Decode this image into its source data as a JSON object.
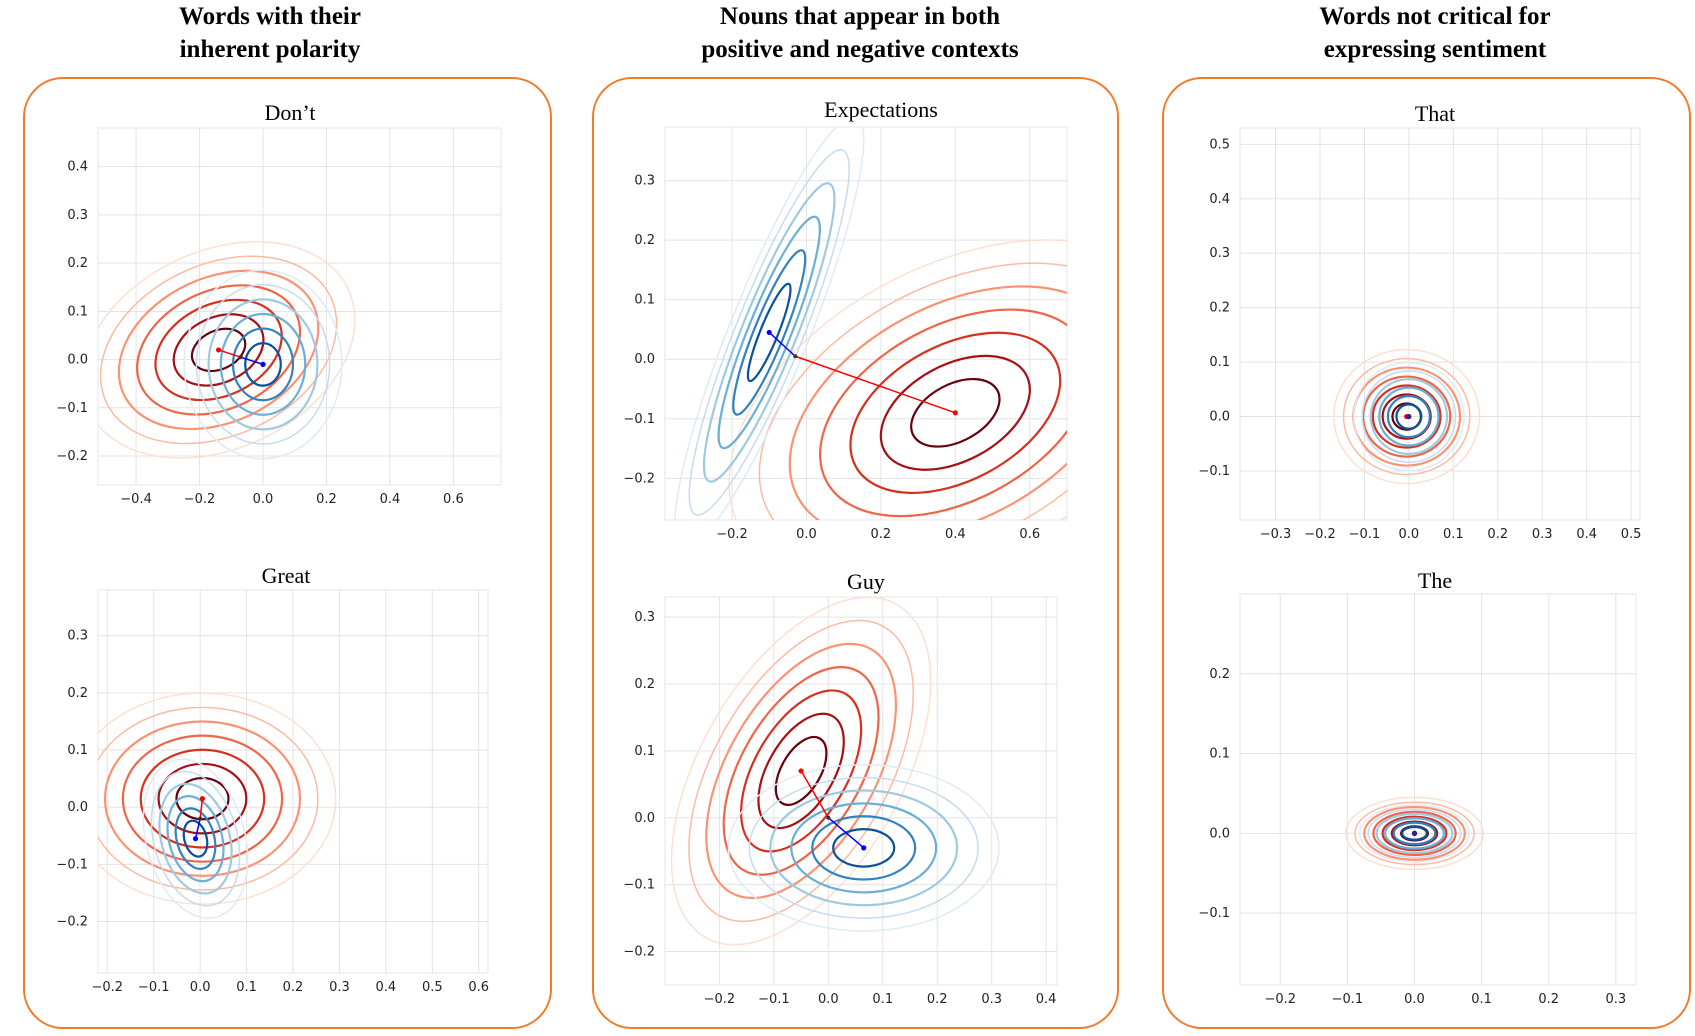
{
  "groups": [
    {
      "title": "Words with their\ninherent polarity"
    },
    {
      "title": "Nouns that appear in both\npositive and negative contexts"
    },
    {
      "title": "Words not critical for\nexpressing sentiment"
    }
  ],
  "colors": {
    "panel_border": "#f07b2b",
    "negative_mean": "#ff0000",
    "positive_mean": "#0000ff",
    "grid": "#e3e3e3"
  },
  "chart_data": [
    {
      "type": "contour",
      "title": "Don’t",
      "xlim": [
        -0.52,
        0.75
      ],
      "ylim": [
        -0.26,
        0.48
      ],
      "xticks": [
        -0.4,
        -0.2,
        0.0,
        0.2,
        0.4,
        0.6
      ],
      "yticks": [
        -0.2,
        -0.1,
        0.0,
        0.1,
        0.2,
        0.3,
        0.4
      ],
      "series": [
        {
          "color": "red",
          "mean": [
            -0.14,
            0.02
          ],
          "sigma": [
            0.11,
            0.05
          ],
          "angle": 25,
          "levels": 7
        },
        {
          "color": "blue",
          "mean": [
            0.0,
            -0.01
          ],
          "sigma": [
            0.07,
            0.055
          ],
          "angle": 0,
          "levels": 6
        }
      ],
      "mid": [
        -0.07,
        0.005
      ]
    },
    {
      "type": "contour",
      "title": "Great",
      "xlim": [
        -0.22,
        0.62
      ],
      "ylim": [
        -0.29,
        0.38
      ],
      "xticks": [
        -0.2,
        -0.1,
        0.0,
        0.1,
        0.2,
        0.3,
        0.4,
        0.5,
        0.6
      ],
      "yticks": [
        -0.2,
        -0.1,
        0.0,
        0.1,
        0.2,
        0.3
      ],
      "series": [
        {
          "color": "red",
          "mean": [
            0.005,
            0.015
          ],
          "sigma": [
            0.07,
            0.045
          ],
          "angle": 0,
          "levels": 7
        },
        {
          "color": "blue",
          "mean": [
            -0.01,
            -0.055
          ],
          "sigma": [
            0.03,
            0.04
          ],
          "angle": 15,
          "levels": 6
        }
      ],
      "mid": [
        0.0,
        -0.02
      ]
    },
    {
      "type": "contour",
      "title": "Expectations",
      "xlim": [
        -0.38,
        0.7
      ],
      "ylim": [
        -0.27,
        0.39
      ],
      "xticks": [
        -0.2,
        0.0,
        0.2,
        0.4,
        0.6
      ],
      "yticks": [
        -0.2,
        -0.1,
        0.0,
        0.1,
        0.2,
        0.3
      ],
      "series": [
        {
          "color": "red",
          "mean": [
            0.4,
            -0.09
          ],
          "sigma": [
            0.16,
            0.06
          ],
          "angle": 28,
          "levels": 7
        },
        {
          "color": "blue",
          "mean": [
            -0.1,
            0.045
          ],
          "sigma": [
            0.03,
            0.11
          ],
          "angle": -22,
          "levels": 6
        }
      ],
      "mid": [
        -0.03,
        0.005
      ]
    },
    {
      "type": "contour",
      "title": "Guy",
      "xlim": [
        -0.3,
        0.42
      ],
      "ylim": [
        -0.25,
        0.33
      ],
      "xticks": [
        -0.2,
        -0.1,
        0.0,
        0.1,
        0.2,
        0.3,
        0.4
      ],
      "yticks": [
        -0.2,
        -0.1,
        0.0,
        0.1,
        0.2,
        0.3
      ],
      "series": [
        {
          "color": "red",
          "mean": [
            -0.05,
            0.07
          ],
          "sigma": [
            0.045,
            0.07
          ],
          "angle": -30,
          "levels": 7
        },
        {
          "color": "blue",
          "mean": [
            0.065,
            -0.045
          ],
          "sigma": [
            0.07,
            0.035
          ],
          "angle": 0,
          "levels": 6
        }
      ],
      "mid": [
        0.0,
        0.0
      ]
    },
    {
      "type": "contour",
      "title": "That",
      "xlim": [
        -0.38,
        0.52
      ],
      "ylim": [
        -0.19,
        0.53
      ],
      "xticks": [
        -0.3,
        -0.2,
        -0.1,
        0.0,
        0.1,
        0.2,
        0.3,
        0.4,
        0.5
      ],
      "yticks": [
        -0.1,
        0.0,
        0.1,
        0.2,
        0.3,
        0.4,
        0.5
      ],
      "series": [
        {
          "color": "red",
          "mean": [
            -0.005,
            0.0
          ],
          "sigma": [
            0.04,
            0.03
          ],
          "angle": 0,
          "levels": 7
        },
        {
          "color": "blue",
          "mean": [
            0.0,
            0.0
          ],
          "sigma": [
            0.035,
            0.028
          ],
          "angle": 0,
          "levels": 6
        }
      ],
      "mid": [
        0.0,
        0.0
      ]
    },
    {
      "type": "contour",
      "title": "The",
      "xlim": [
        -0.26,
        0.33
      ],
      "ylim": [
        -0.19,
        0.3
      ],
      "xticks": [
        -0.2,
        -0.1,
        0.0,
        0.1,
        0.2,
        0.3
      ],
      "yticks": [
        -0.1,
        0.0,
        0.1,
        0.2
      ],
      "series": [
        {
          "color": "red",
          "mean": [
            0.0,
            0.0
          ],
          "sigma": [
            0.025,
            0.011
          ],
          "angle": 0,
          "levels": 7
        },
        {
          "color": "blue",
          "mean": [
            0.0,
            0.0
          ],
          "sigma": [
            0.023,
            0.01
          ],
          "angle": 0,
          "levels": 6
        }
      ],
      "mid": [
        0.0,
        0.0
      ]
    }
  ]
}
